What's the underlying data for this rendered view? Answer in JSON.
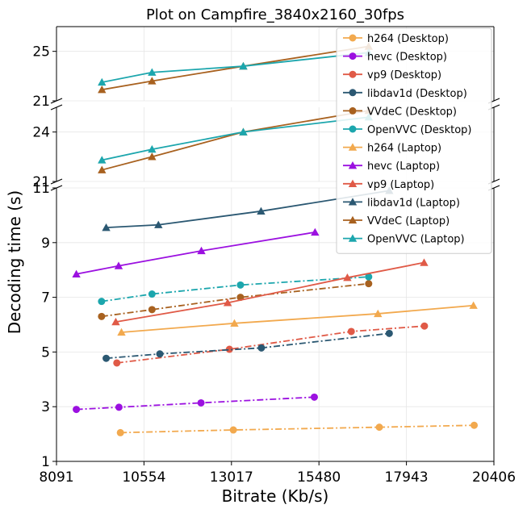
{
  "chart_data": {
    "type": "line",
    "title": "Plot on Campfire_3840x2160_30fps",
    "xlabel": "Bitrate (Kb/s)",
    "ylabel": "Decoding time (s)",
    "grid": true,
    "legend_position": "top-right",
    "xlim": [
      8091,
      20406
    ],
    "x_ticks": [
      8091,
      10554,
      13017,
      15480,
      17943,
      20406
    ],
    "broken_y_axis": true,
    "panels": [
      {
        "name": "top",
        "ylim": [
          21,
          27
        ],
        "y_ticks": [
          21,
          25
        ]
      },
      {
        "name": "middle",
        "ylim": [
          21,
          25.5
        ],
        "y_ticks": [
          21,
          24
        ]
      },
      {
        "name": "bottom",
        "ylim": [
          1,
          11
        ],
        "y_ticks": [
          1,
          3,
          5,
          7,
          9,
          11
        ]
      }
    ],
    "series": [
      {
        "name": "h264 (Desktop)",
        "color": "#f2a94e",
        "line": "dashdot",
        "marker": "circle",
        "panel": "bottom",
        "x": [
          9890,
          13070,
          17180,
          19850
        ],
        "y": [
          2.05,
          2.15,
          2.25,
          2.32
        ]
      },
      {
        "name": "hevc (Desktop)",
        "color": "#9b10e0",
        "line": "dashdot",
        "marker": "circle",
        "panel": "bottom",
        "x": [
          8650,
          9850,
          12160,
          15350
        ],
        "y": [
          2.9,
          2.98,
          3.14,
          3.35
        ]
      },
      {
        "name": "vp9 (Desktop)",
        "color": "#e05a47",
        "line": "dashdot",
        "marker": "circle",
        "panel": "bottom",
        "x": [
          9790,
          12960,
          16390,
          18450
        ],
        "y": [
          4.6,
          5.1,
          5.75,
          5.95
        ]
      },
      {
        "name": "libdav1d (Desktop)",
        "color": "#2b5872",
        "line": "dashdot",
        "marker": "circle",
        "panel": "bottom",
        "x": [
          9490,
          11000,
          13860,
          17460
        ],
        "y": [
          4.77,
          4.93,
          5.15,
          5.68
        ]
      },
      {
        "name": "VVdeC (Desktop)",
        "color": "#a8611f",
        "line": "dashdot",
        "marker": "circle",
        "panel": "bottom",
        "x": [
          9360,
          10780,
          13270,
          16880
        ],
        "y": [
          6.3,
          6.55,
          7.0,
          7.5
        ]
      },
      {
        "name": "OpenVVC (Desktop)",
        "color": "#1ca6ad",
        "line": "dashdot",
        "marker": "circle",
        "panel": "bottom",
        "x": [
          9360,
          10780,
          13270,
          16880
        ],
        "y": [
          6.85,
          7.12,
          7.45,
          7.75
        ]
      },
      {
        "name": "h264 (Laptop)",
        "color": "#f2a94e",
        "line": "solid",
        "marker": "triangle",
        "panel": "bottom",
        "x": [
          9920,
          13100,
          17140,
          19830
        ],
        "y": [
          5.72,
          6.05,
          6.4,
          6.7
        ]
      },
      {
        "name": "hevc (Laptop)",
        "color": "#9b10e0",
        "line": "solid",
        "marker": "triangle",
        "panel": "bottom",
        "x": [
          8650,
          9840,
          12170,
          15370
        ],
        "y": [
          7.85,
          8.15,
          8.7,
          9.38
        ]
      },
      {
        "name": "vp9 (Laptop)",
        "color": "#e05a47",
        "line": "solid",
        "marker": "triangle",
        "panel": "bottom",
        "x": [
          9760,
          12910,
          16280,
          18440
        ],
        "y": [
          6.1,
          6.8,
          7.72,
          8.27
        ]
      },
      {
        "name": "libdav1d (Laptop)",
        "color": "#2b5872",
        "line": "solid",
        "marker": "triangle",
        "panel": "bottom",
        "x": [
          9490,
          10960,
          13850,
          17460
        ],
        "y": [
          9.55,
          9.65,
          10.15,
          10.9
        ]
      },
      {
        "name": "VVdeC (Laptop)",
        "color": "#a8611f",
        "line": "solid",
        "marker": "triangle",
        "panel": "middle",
        "x": [
          9370,
          10780,
          13350,
          16880
        ],
        "y": [
          21.7,
          22.5,
          24.0,
          25.3
        ]
      },
      {
        "name": "OpenVVC (Laptop)",
        "color": "#1ca6ad",
        "line": "solid",
        "marker": "triangle",
        "panel": "middle",
        "x": [
          9370,
          10780,
          13350,
          16880
        ],
        "y": [
          22.3,
          22.95,
          24.0,
          24.9
        ]
      },
      {
        "name": "VVdeC (Laptop) top",
        "color": "#a8611f",
        "line": "solid",
        "marker": "triangle",
        "panel": "top",
        "x": [
          9370,
          10780,
          13350,
          16880
        ],
        "y": [
          21.9,
          22.6,
          23.8,
          25.4
        ]
      },
      {
        "name": "OpenVVC (Laptop) top",
        "color": "#1ca6ad",
        "line": "solid",
        "marker": "triangle",
        "panel": "top",
        "x": [
          9370,
          10780,
          13350,
          16880
        ],
        "y": [
          22.5,
          23.3,
          23.8,
          24.9
        ]
      }
    ]
  }
}
